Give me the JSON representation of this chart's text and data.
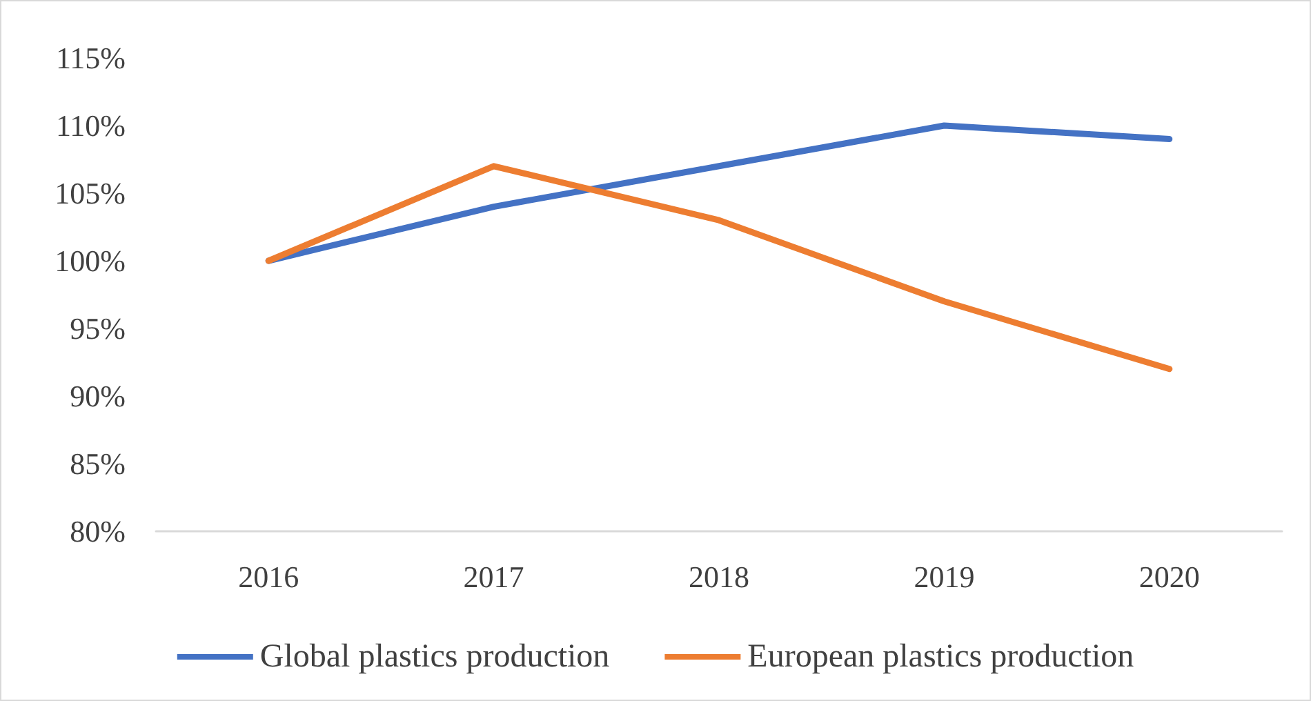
{
  "chart_data": {
    "type": "line",
    "categories": [
      "2016",
      "2017",
      "2018",
      "2019",
      "2020"
    ],
    "series": [
      {
        "name": "Global plastics production",
        "color": "#4472c4",
        "values": [
          100,
          104,
          107,
          110,
          109
        ]
      },
      {
        "name": "European plastics production",
        "color": "#ed7d31",
        "values": [
          100,
          107,
          103,
          97,
          92
        ]
      }
    ],
    "ylim": [
      80,
      115
    ],
    "yticks": [
      {
        "value": 80,
        "label": "80%"
      },
      {
        "value": 85,
        "label": "85%"
      },
      {
        "value": 90,
        "label": "90%"
      },
      {
        "value": 95,
        "label": "95%"
      },
      {
        "value": 100,
        "label": "100%"
      },
      {
        "value": 105,
        "label": "105%"
      },
      {
        "value": 110,
        "label": "110%"
      },
      {
        "value": 115,
        "label": "115%"
      }
    ],
    "grid": false,
    "legend": "bottom",
    "marker": "none",
    "line_style": "solid"
  }
}
